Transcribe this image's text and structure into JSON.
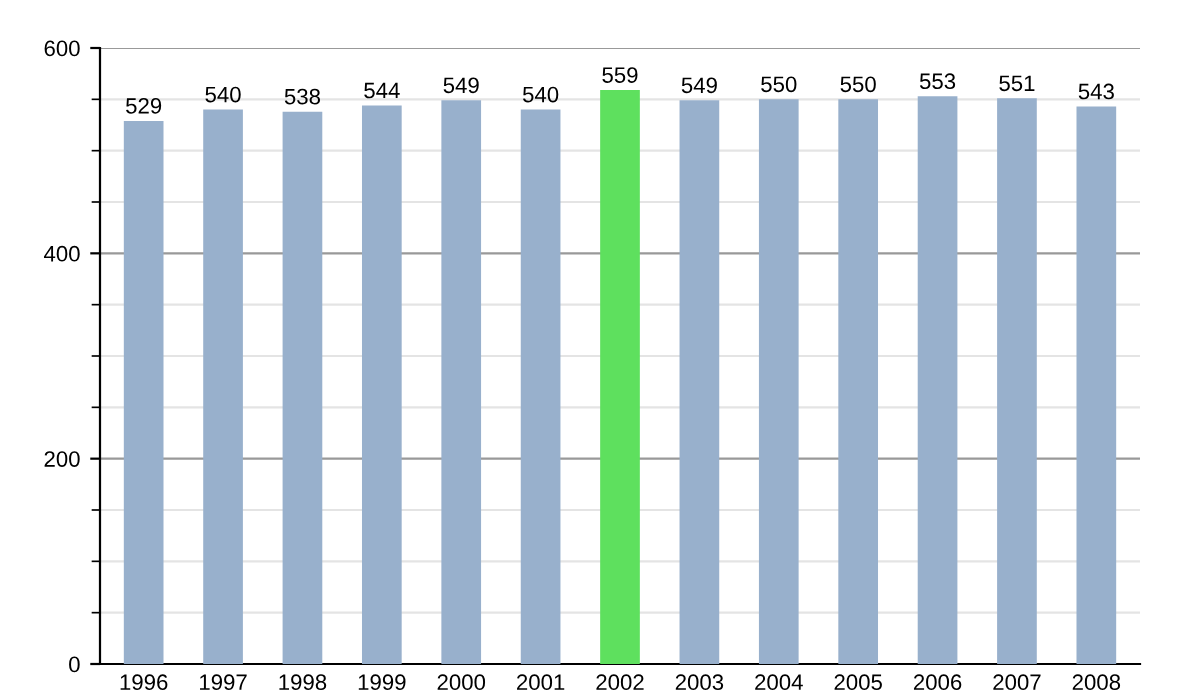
{
  "chart_data": {
    "type": "bar",
    "categories": [
      "1996",
      "1997",
      "1998",
      "1999",
      "2000",
      "2001",
      "2002",
      "2003",
      "2004",
      "2005",
      "2006",
      "2007",
      "2008"
    ],
    "values": [
      529,
      540,
      538,
      544,
      549,
      540,
      559,
      549,
      550,
      550,
      553,
      551,
      543
    ],
    "colors": [
      "#98b0cc",
      "#98b0cc",
      "#98b0cc",
      "#98b0cc",
      "#98b0cc",
      "#98b0cc",
      "#5ee05e",
      "#98b0cc",
      "#98b0cc",
      "#98b0cc",
      "#98b0cc",
      "#98b0cc",
      "#98b0cc"
    ],
    "data_labels": true,
    "ylim": [
      0,
      600
    ],
    "yticks": [
      0,
      {
        "value": 50,
        "label": null
      },
      {
        "value": 100,
        "label": null
      },
      {
        "value": 150,
        "label": null
      },
      200,
      {
        "value": 250,
        "label": null
      },
      {
        "value": 300,
        "label": null
      },
      {
        "value": 350,
        "label": null
      },
      400,
      {
        "value": 450,
        "label": null
      },
      {
        "value": 500,
        "label": null
      },
      {
        "value": 550,
        "label": null
      },
      600
    ],
    "grid": "y"
  }
}
